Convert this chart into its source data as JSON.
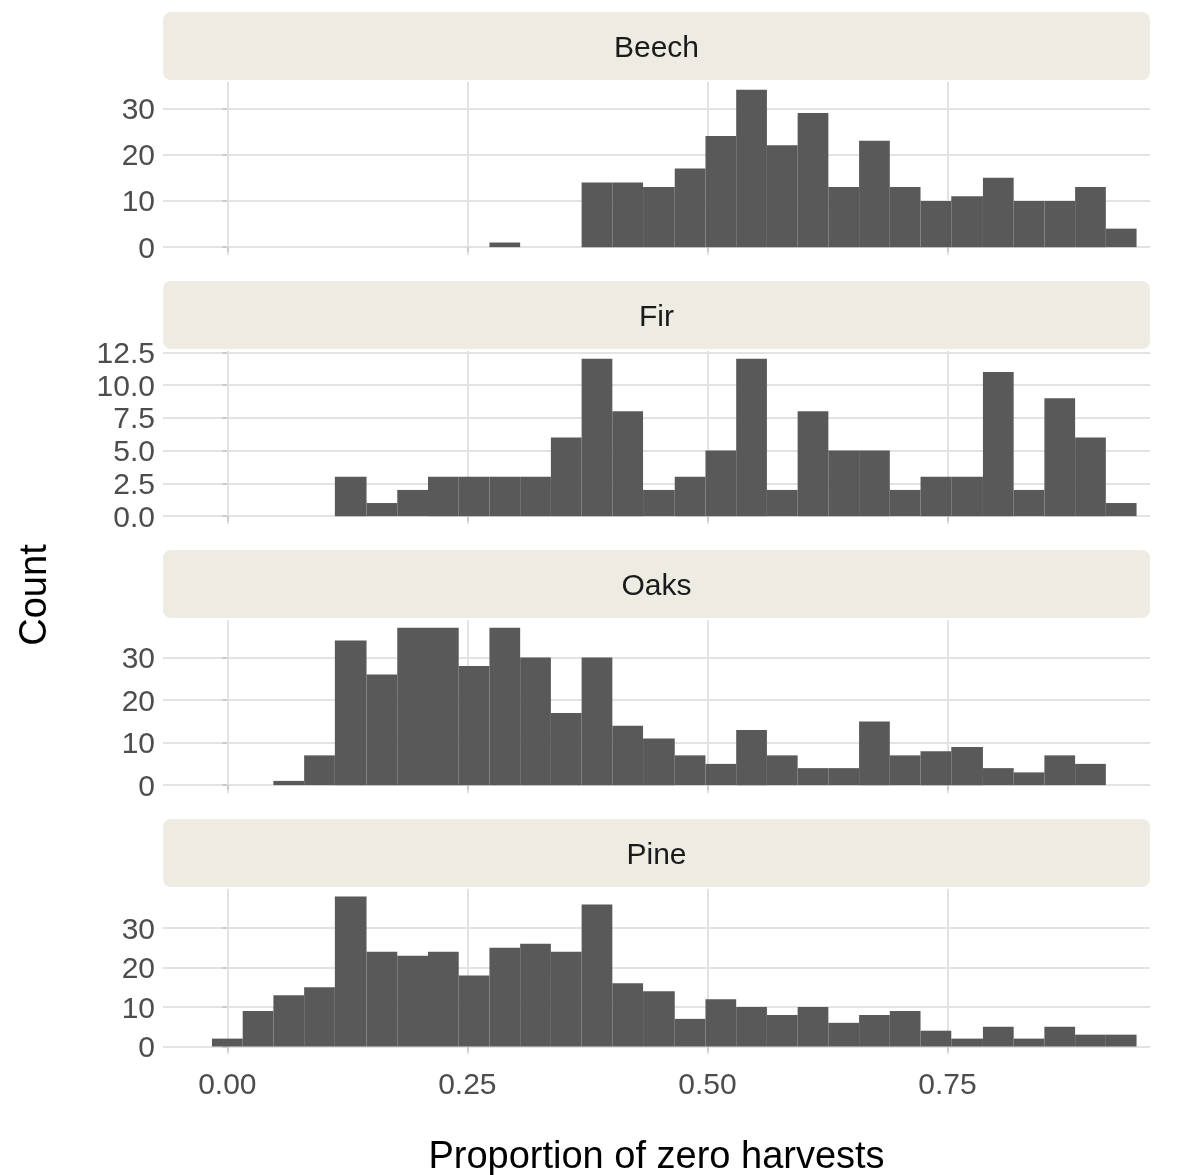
{
  "chart_data": [
    {
      "type": "histogram",
      "title": "Beech",
      "color": "#595959",
      "grid": true,
      "tick_labels": "y",
      "xlim": [
        -0.067,
        0.961
      ],
      "ylim": [
        -1.7,
        35.7
      ],
      "yticks": [
        0,
        10,
        20,
        30
      ],
      "bins": [
        0.273,
        0.305,
        0.369,
        0.401,
        0.433,
        0.466,
        0.498,
        0.53,
        0.562,
        0.594,
        0.626,
        0.658,
        0.69,
        0.722,
        0.754,
        0.787,
        0.819,
        0.851,
        0.883,
        0.915,
        0.947
      ],
      "values": [
        1,
        0,
        14,
        14,
        13,
        17,
        24,
        34,
        22,
        29,
        13,
        23,
        13,
        10,
        11,
        15,
        10,
        10,
        13,
        4
      ]
    },
    {
      "type": "histogram",
      "title": "Fir",
      "color": "#595959",
      "grid": true,
      "tick_labels": "y",
      "xlim": [
        -0.067,
        0.961
      ],
      "ylim": [
        -0.6,
        12.6
      ],
      "yticks": [
        {
          "value": 0,
          "label": "0.0"
        },
        2.5,
        {
          "value": 5,
          "label": "5.0"
        },
        7.5,
        {
          "value": 10,
          "label": "10.0"
        },
        12.5
      ],
      "bins": [
        0.112,
        0.145,
        0.177,
        0.209,
        0.241,
        0.273,
        0.305,
        0.337,
        0.369,
        0.401,
        0.433,
        0.466,
        0.498,
        0.53,
        0.562,
        0.594,
        0.626,
        0.658,
        0.69,
        0.722,
        0.754,
        0.787,
        0.819,
        0.851,
        0.883,
        0.915,
        0.947
      ],
      "values": [
        3,
        1,
        2,
        3,
        3,
        3,
        3,
        6,
        12,
        8,
        2,
        3,
        5,
        12,
        2,
        8,
        5,
        5,
        2,
        3,
        3,
        11,
        2,
        9,
        6,
        1
      ]
    },
    {
      "type": "histogram",
      "title": "Oaks",
      "ylabel": "Count",
      "color": "#595959",
      "grid": true,
      "tick_labels": "y",
      "xlim": [
        -0.067,
        0.961
      ],
      "ylim": [
        -1.85,
        38.85
      ],
      "yticks": [
        0,
        10,
        20,
        30
      ],
      "bins": [
        0.048,
        0.08,
        0.112,
        0.145,
        0.177,
        0.209,
        0.241,
        0.273,
        0.305,
        0.337,
        0.369,
        0.401,
        0.433,
        0.466,
        0.498,
        0.53,
        0.562,
        0.594,
        0.626,
        0.658,
        0.69,
        0.722,
        0.754,
        0.787,
        0.819,
        0.851,
        0.883,
        0.915
      ],
      "values": [
        1,
        7,
        34,
        26,
        37,
        37,
        28,
        37,
        30,
        17,
        30,
        14,
        11,
        7,
        5,
        13,
        7,
        4,
        4,
        15,
        7,
        8,
        9,
        4,
        3,
        7,
        5
      ]
    },
    {
      "type": "histogram",
      "title": "Pine",
      "xlabel": "Proportion of zero harvests",
      "color": "#595959",
      "grid": true,
      "xlim": [
        -0.067,
        0.961
      ],
      "xticks": [
        {
          "value": 0,
          "label": "0.00"
        },
        0.25,
        {
          "value": 0.5,
          "label": "0.50"
        },
        0.75
      ],
      "ylim": [
        -1.9,
        39.9
      ],
      "yticks": [
        0,
        10,
        20,
        30
      ],
      "bins": [
        -0.016,
        0.016,
        0.048,
        0.08,
        0.112,
        0.145,
        0.177,
        0.209,
        0.241,
        0.273,
        0.305,
        0.337,
        0.369,
        0.401,
        0.433,
        0.466,
        0.498,
        0.53,
        0.562,
        0.594,
        0.626,
        0.658,
        0.69,
        0.722,
        0.754,
        0.787,
        0.819,
        0.851,
        0.883,
        0.915,
        0.947
      ],
      "values": [
        2,
        9,
        13,
        15,
        38,
        24,
        23,
        24,
        18,
        25,
        26,
        24,
        36,
        16,
        14,
        7,
        12,
        10,
        8,
        10,
        6,
        8,
        9,
        4,
        2,
        5,
        2,
        5,
        3,
        3
      ]
    }
  ]
}
